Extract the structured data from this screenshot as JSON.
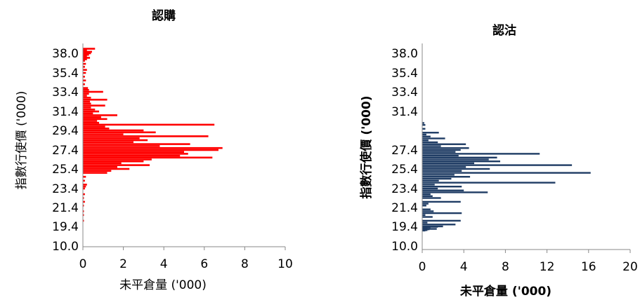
{
  "chart_data": [
    {
      "type": "bar",
      "orientation": "horizontal",
      "title": "認購",
      "xlabel": "未平倉量 ('000)",
      "ylabel": "指數行使價 ('000)",
      "xlim": [
        0,
        10
      ],
      "xticks": [
        "0",
        "2",
        "4",
        "6",
        "8",
        "10"
      ],
      "ylim": [
        10.0,
        38.0
      ],
      "yticks": [
        "38.0",
        "35.4",
        "33.4",
        "31.4",
        "29.4",
        "27.4",
        "25.4",
        "23.4",
        "21.4",
        "19.4",
        "10.0"
      ],
      "ytick_values": [
        38.0,
        35.4,
        33.4,
        31.4,
        29.4,
        27.4,
        25.4,
        23.4,
        21.4,
        19.4,
        10.0
      ],
      "bar_color": "#ff0000",
      "grid": false,
      "legend": "none",
      "bars": [
        {
          "y": 38.6,
          "v": 0.6
        },
        {
          "y": 38.4,
          "v": 0.2
        },
        {
          "y": 38.2,
          "v": 0.45
        },
        {
          "y": 38.0,
          "v": 0.4
        },
        {
          "y": 37.8,
          "v": 0.3
        },
        {
          "y": 37.6,
          "v": 0.2
        },
        {
          "y": 37.4,
          "v": 0.35
        },
        {
          "y": 37.2,
          "v": 0.2
        },
        {
          "y": 37.0,
          "v": 0.1
        },
        {
          "y": 36.6,
          "v": 0.15
        },
        {
          "y": 36.2,
          "v": 0.1
        },
        {
          "y": 35.8,
          "v": 0.2
        },
        {
          "y": 35.4,
          "v": 0.15
        },
        {
          "y": 35.0,
          "v": 0.1
        },
        {
          "y": 34.6,
          "v": 0.15
        },
        {
          "y": 34.2,
          "v": 0.1
        },
        {
          "y": 33.8,
          "v": 0.25
        },
        {
          "y": 33.6,
          "v": 0.3
        },
        {
          "y": 33.4,
          "v": 1.0
        },
        {
          "y": 33.2,
          "v": 0.3
        },
        {
          "y": 33.0,
          "v": 0.2
        },
        {
          "y": 32.8,
          "v": 0.4
        },
        {
          "y": 32.6,
          "v": 1.2
        },
        {
          "y": 32.4,
          "v": 0.35
        },
        {
          "y": 32.2,
          "v": 0.4
        },
        {
          "y": 32.0,
          "v": 1.1
        },
        {
          "y": 31.8,
          "v": 0.4
        },
        {
          "y": 31.6,
          "v": 0.6
        },
        {
          "y": 31.4,
          "v": 0.8
        },
        {
          "y": 31.2,
          "v": 0.5
        },
        {
          "y": 31.0,
          "v": 1.7
        },
        {
          "y": 30.8,
          "v": 0.9
        },
        {
          "y": 30.6,
          "v": 1.2
        },
        {
          "y": 30.4,
          "v": 0.7
        },
        {
          "y": 30.2,
          "v": 0.8
        },
        {
          "y": 30.0,
          "v": 6.5
        },
        {
          "y": 29.8,
          "v": 1.1
        },
        {
          "y": 29.6,
          "v": 1.3
        },
        {
          "y": 29.4,
          "v": 3.0
        },
        {
          "y": 29.2,
          "v": 3.6
        },
        {
          "y": 29.0,
          "v": 2.0
        },
        {
          "y": 28.8,
          "v": 6.2
        },
        {
          "y": 28.6,
          "v": 2.8
        },
        {
          "y": 28.4,
          "v": 3.2
        },
        {
          "y": 28.2,
          "v": 2.5
        },
        {
          "y": 28.0,
          "v": 5.3
        },
        {
          "y": 27.8,
          "v": 3.8
        },
        {
          "y": 27.6,
          "v": 6.9
        },
        {
          "y": 27.4,
          "v": 6.7
        },
        {
          "y": 27.2,
          "v": 5.0
        },
        {
          "y": 27.0,
          "v": 5.2
        },
        {
          "y": 26.8,
          "v": 4.8
        },
        {
          "y": 26.6,
          "v": 6.4
        },
        {
          "y": 26.4,
          "v": 3.4
        },
        {
          "y": 26.2,
          "v": 3.0
        },
        {
          "y": 26.0,
          "v": 1.9
        },
        {
          "y": 25.8,
          "v": 3.3
        },
        {
          "y": 25.6,
          "v": 1.7
        },
        {
          "y": 25.4,
          "v": 2.3
        },
        {
          "y": 25.2,
          "v": 1.4
        },
        {
          "y": 25.0,
          "v": 1.2
        },
        {
          "y": 24.6,
          "v": 0.15
        },
        {
          "y": 24.2,
          "v": 0.1
        },
        {
          "y": 23.8,
          "v": 0.2
        },
        {
          "y": 23.6,
          "v": 0.15
        },
        {
          "y": 23.4,
          "v": 0.1
        },
        {
          "y": 22.8,
          "v": 0.1
        },
        {
          "y": 22.4,
          "v": 0.05
        },
        {
          "y": 22.0,
          "v": 0.1
        },
        {
          "y": 21.6,
          "v": 0.05
        },
        {
          "y": 21.0,
          "v": 0.05
        },
        {
          "y": 20.6,
          "v": 0.05
        },
        {
          "y": 20.0,
          "v": 0.05
        }
      ]
    },
    {
      "type": "bar",
      "orientation": "horizontal",
      "title": "認沽",
      "xlabel": "未平倉量 ('000)",
      "ylabel": "指數行使價 ('000)",
      "xlim": [
        0,
        20
      ],
      "xticks": [
        "0",
        "4",
        "8",
        "12",
        "16",
        "20"
      ],
      "ylim": [
        10.0,
        38.0
      ],
      "yticks": [
        "38.0",
        "35.4",
        "33.4",
        "31.4",
        "27.4",
        "25.4",
        "23.4",
        "21.4",
        "19.4",
        "10.0"
      ],
      "ytick_values": [
        38.0,
        35.4,
        33.4,
        31.4,
        27.4,
        25.4,
        23.4,
        21.4,
        19.4,
        10.0
      ],
      "bar_color": "#1f3c64",
      "grid": false,
      "legend": "none",
      "bars": [
        {
          "y": 30.2,
          "v": 0.2
        },
        {
          "y": 30.0,
          "v": 0.3
        },
        {
          "y": 29.6,
          "v": 0.3
        },
        {
          "y": 29.2,
          "v": 1.6
        },
        {
          "y": 29.0,
          "v": 0.4
        },
        {
          "y": 28.8,
          "v": 0.8
        },
        {
          "y": 28.6,
          "v": 2.2
        },
        {
          "y": 28.4,
          "v": 0.6
        },
        {
          "y": 28.2,
          "v": 1.5
        },
        {
          "y": 28.0,
          "v": 4.2
        },
        {
          "y": 27.8,
          "v": 1.8
        },
        {
          "y": 27.6,
          "v": 4.5
        },
        {
          "y": 27.4,
          "v": 3.7
        },
        {
          "y": 27.2,
          "v": 3.2
        },
        {
          "y": 27.0,
          "v": 11.3
        },
        {
          "y": 26.8,
          "v": 3.5
        },
        {
          "y": 26.6,
          "v": 7.2
        },
        {
          "y": 26.4,
          "v": 6.4
        },
        {
          "y": 26.2,
          "v": 7.5
        },
        {
          "y": 26.0,
          "v": 5.0
        },
        {
          "y": 25.8,
          "v": 14.4
        },
        {
          "y": 25.6,
          "v": 4.2
        },
        {
          "y": 25.4,
          "v": 6.5
        },
        {
          "y": 25.2,
          "v": 3.8
        },
        {
          "y": 25.0,
          "v": 16.2
        },
        {
          "y": 24.8,
          "v": 3.1
        },
        {
          "y": 24.6,
          "v": 4.6
        },
        {
          "y": 24.4,
          "v": 2.8
        },
        {
          "y": 24.2,
          "v": 1.6
        },
        {
          "y": 24.0,
          "v": 12.8
        },
        {
          "y": 23.8,
          "v": 1.2
        },
        {
          "y": 23.6,
          "v": 3.8
        },
        {
          "y": 23.4,
          "v": 1.5
        },
        {
          "y": 23.2,
          "v": 4.0
        },
        {
          "y": 23.0,
          "v": 6.3
        },
        {
          "y": 22.8,
          "v": 0.8
        },
        {
          "y": 22.6,
          "v": 1.0
        },
        {
          "y": 22.4,
          "v": 1.8
        },
        {
          "y": 22.0,
          "v": 3.7
        },
        {
          "y": 21.8,
          "v": 0.6
        },
        {
          "y": 21.6,
          "v": 0.4
        },
        {
          "y": 21.2,
          "v": 0.8
        },
        {
          "y": 21.0,
          "v": 1.1
        },
        {
          "y": 20.8,
          "v": 3.8
        },
        {
          "y": 20.6,
          "v": 0.3
        },
        {
          "y": 20.4,
          "v": 1.0
        },
        {
          "y": 20.0,
          "v": 3.7
        },
        {
          "y": 19.8,
          "v": 0.5
        },
        {
          "y": 19.6,
          "v": 3.2
        },
        {
          "y": 19.4,
          "v": 2.0
        },
        {
          "y": 19.2,
          "v": 1.5
        },
        {
          "y": 19.0,
          "v": 0.8
        },
        {
          "y": 18.6,
          "v": 0.5
        },
        {
          "y": 18.2,
          "v": 1.4
        },
        {
          "y": 18.0,
          "v": 0.7
        },
        {
          "y": 17.6,
          "v": 0.5
        },
        {
          "y": 17.4,
          "v": 0.3
        }
      ]
    }
  ]
}
